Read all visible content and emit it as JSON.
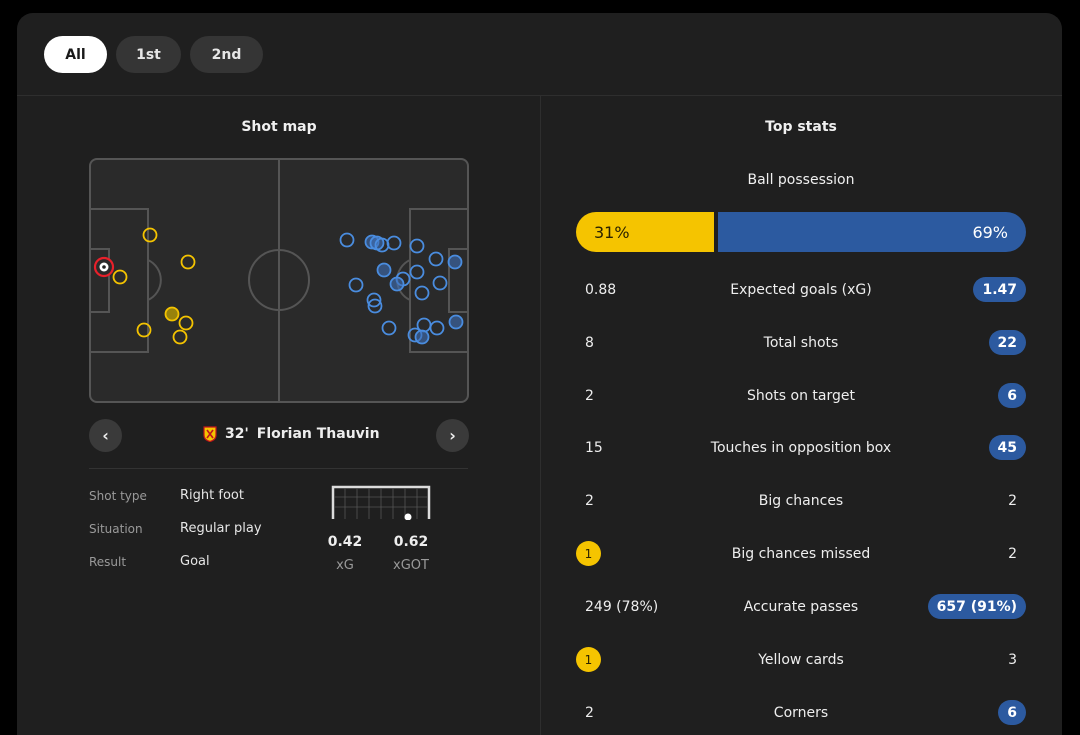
{
  "tabs": [
    {
      "label": "All",
      "active": true
    },
    {
      "label": "1st",
      "active": false
    },
    {
      "label": "2nd",
      "active": false
    }
  ],
  "shot_map": {
    "title": "Shot map",
    "selected_shot": {
      "minute": "32'",
      "player": "Florian Thauvin",
      "team_badge_icon": "rc-lens-badge-icon",
      "details": [
        {
          "label": "Shot type",
          "value": "Right foot"
        },
        {
          "label": "Situation",
          "value": "Regular play"
        },
        {
          "label": "Result",
          "value": "Goal"
        }
      ],
      "xg": {
        "value": "0.42",
        "label": "xG"
      },
      "xgot": {
        "value": "0.62",
        "label": "xGOT"
      }
    },
    "colors": {
      "home": "#f5c400",
      "away": "#4a8de0",
      "selected": "#e8202a",
      "pitch": "#2a2a2a",
      "lines": "#555555"
    }
  },
  "top_stats": {
    "title": "Top stats",
    "possession": {
      "label": "Ball possession",
      "home": "31%",
      "away": "69%",
      "home_pct": 31,
      "away_pct": 69
    },
    "rows": [
      {
        "home": "0.88",
        "label": "Expected goals (xG)",
        "away": "1.47",
        "home_badge": false,
        "away_badge": true
      },
      {
        "home": "8",
        "label": "Total shots",
        "away": "22",
        "home_badge": false,
        "away_badge": true
      },
      {
        "home": "2",
        "label": "Shots on target",
        "away": "6",
        "home_badge": false,
        "away_badge": true
      },
      {
        "home": "15",
        "label": "Touches in opposition box",
        "away": "45",
        "home_badge": false,
        "away_badge": true
      },
      {
        "home": "2",
        "label": "Big chances",
        "away": "2",
        "home_badge": false,
        "away_badge": false
      },
      {
        "home": "1",
        "label": "Big chances missed",
        "away": "2",
        "home_badge": true,
        "away_badge": false
      },
      {
        "home": "249 (78%)",
        "label": "Accurate passes",
        "away": "657 (91%)",
        "home_badge": false,
        "away_badge": true
      },
      {
        "home": "1",
        "label": "Yellow cards",
        "away": "3",
        "home_badge": true,
        "away_badge": false
      },
      {
        "home": "2",
        "label": "Corners",
        "away": "6",
        "home_badge": false,
        "away_badge": true
      }
    ],
    "colors": {
      "home": "#f5c400",
      "away": "#2c5aa0"
    }
  }
}
